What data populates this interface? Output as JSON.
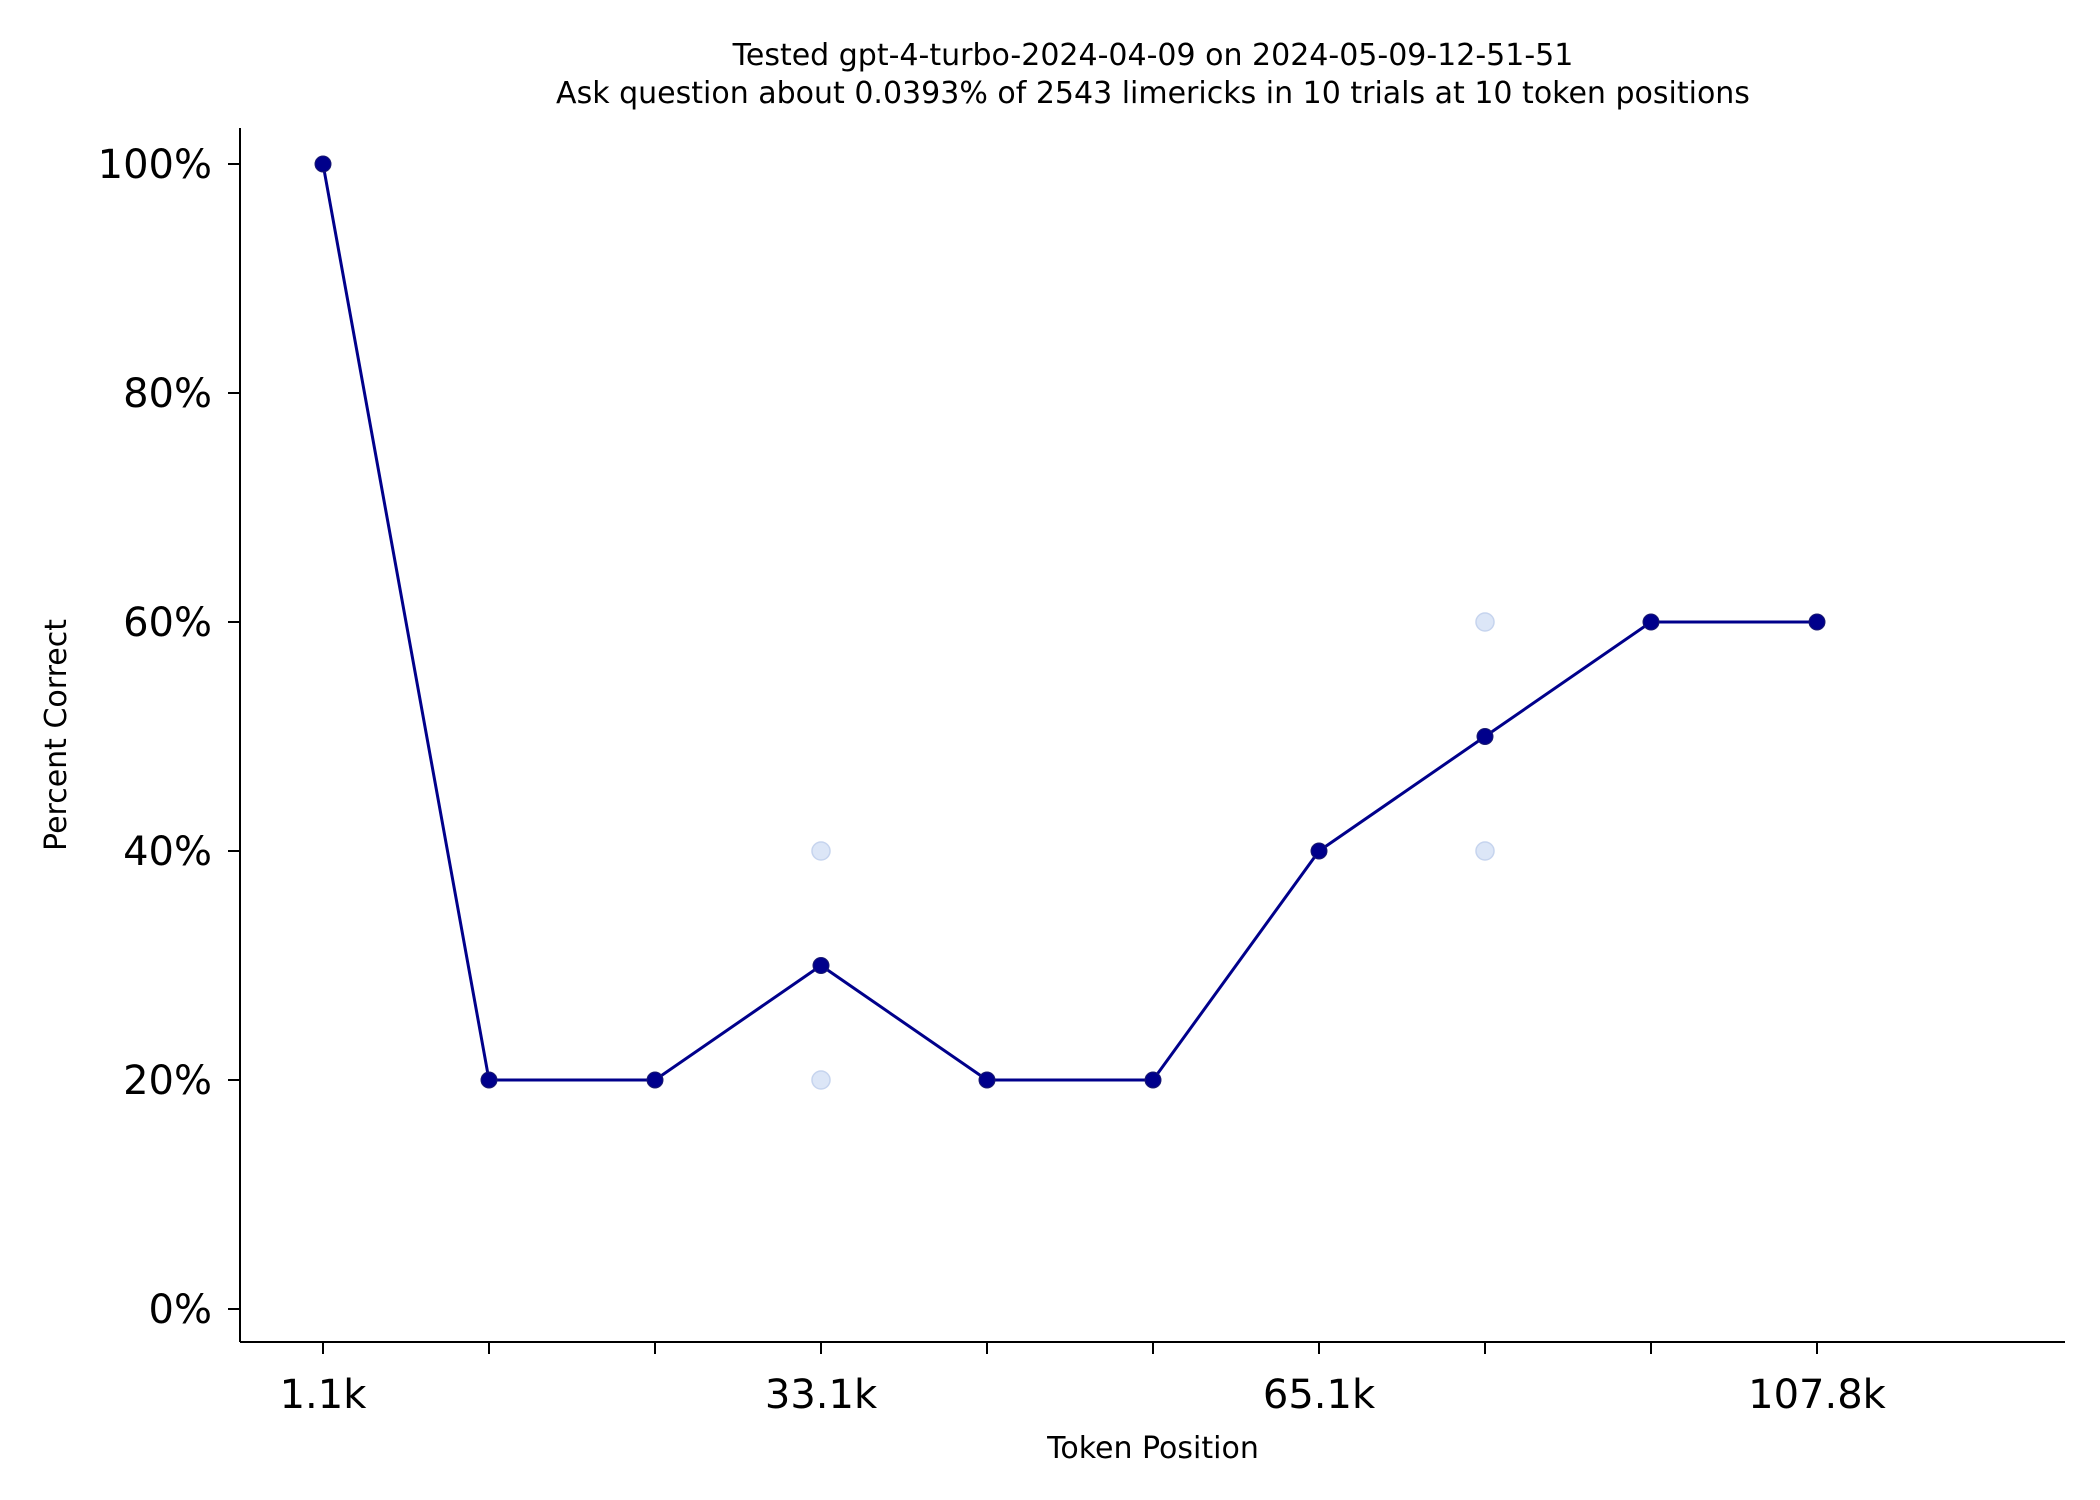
{
  "chart_data": {
    "type": "line",
    "title": "Tested gpt-4-turbo-2024-04-09 on 2024-05-09-12-51-51",
    "subtitle": "Ask question about 0.0393% of 2543 limericks in 10 trials at 10 token positions",
    "xlabel": "Token Position",
    "ylabel": "Percent Correct",
    "x_tick_labels": [
      "1.1k",
      "",
      "",
      "33.1k",
      "",
      "",
      "65.1k",
      "",
      "",
      "107.8k"
    ],
    "y_ticks": [
      0,
      20,
      40,
      60,
      80,
      100
    ],
    "y_tick_labels": [
      "0%",
      "20%",
      "40%",
      "60%",
      "80%",
      "100%"
    ],
    "ylim": [
      0,
      100
    ],
    "grid": false,
    "series": [
      {
        "values": [
          100,
          20,
          20,
          30,
          20,
          20,
          40,
          50,
          60,
          60
        ],
        "color": "#00008b"
      }
    ],
    "trial_points": [
      {
        "position_index": 3,
        "values": [
          40,
          20
        ]
      },
      {
        "position_index": 7,
        "values": [
          60,
          40
        ]
      }
    ],
    "trial_point_color": "#dce6f7"
  }
}
